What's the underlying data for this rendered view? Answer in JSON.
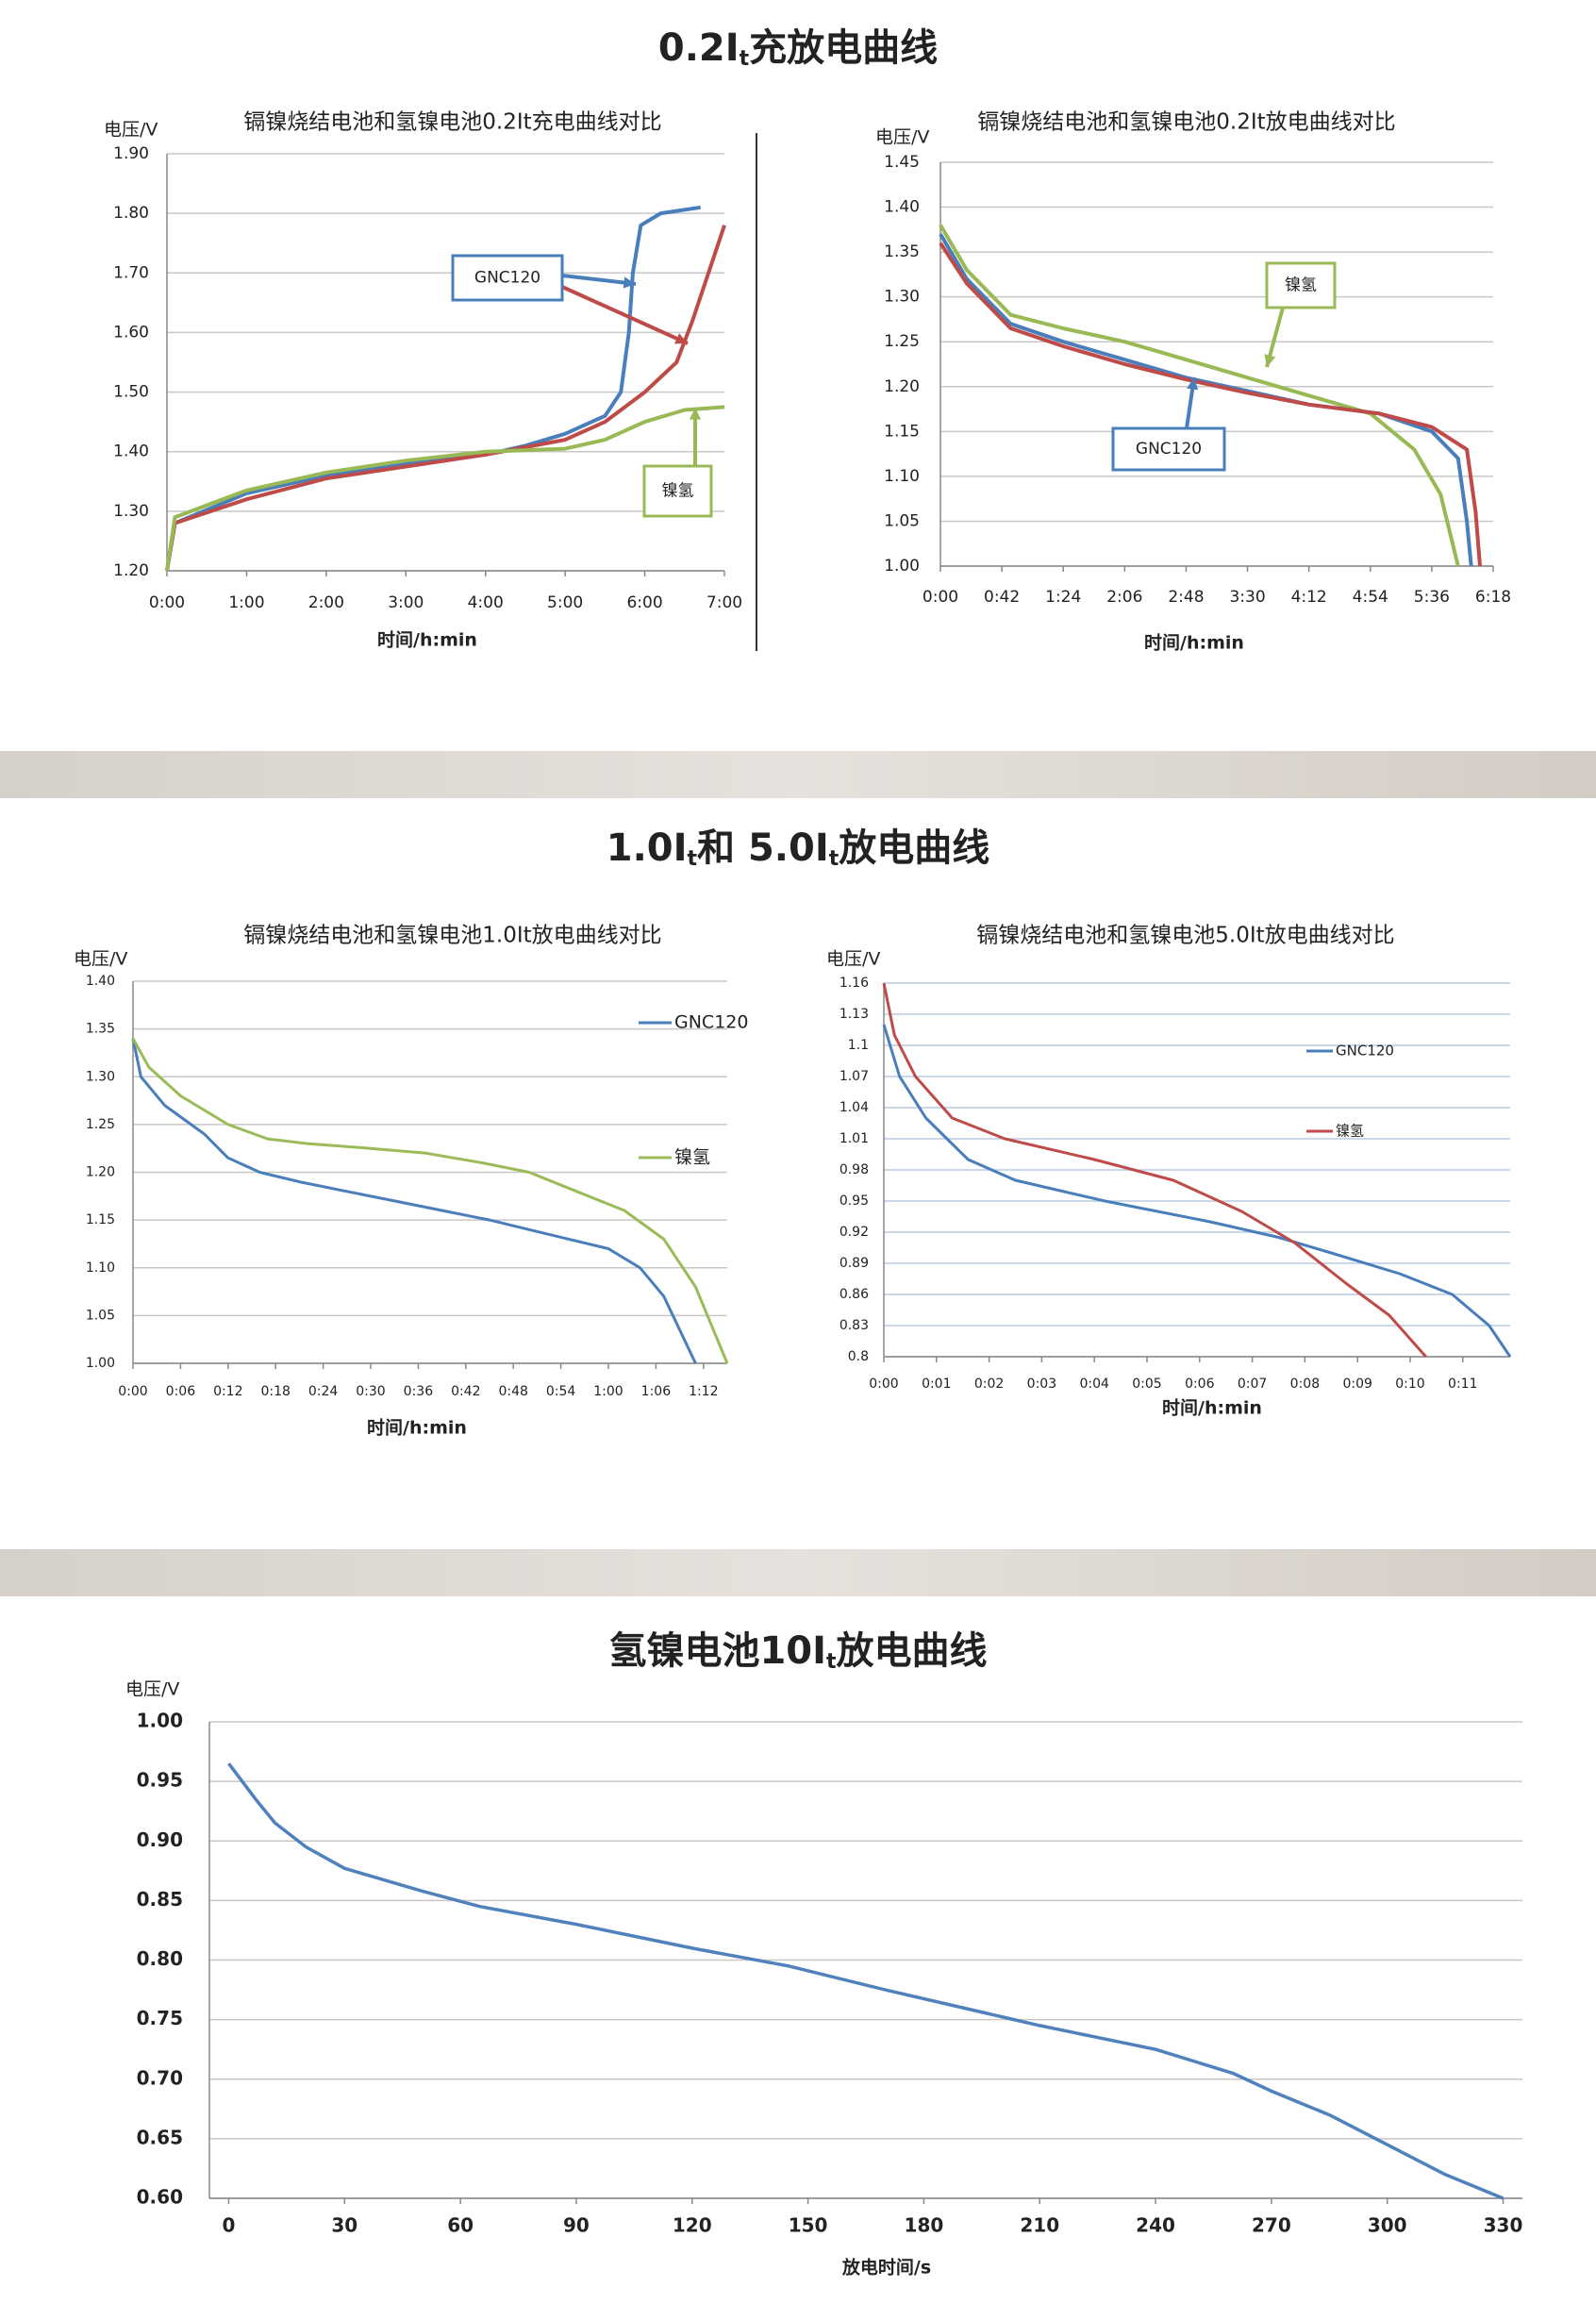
{
  "sections": [
    {
      "heading": [
        "0.2I",
        "t",
        "充放电曲线"
      ]
    },
    {
      "heading": [
        "1.0I",
        "t",
        "和 5.0I",
        "t",
        "放电曲线"
      ]
    },
    {
      "heading": [
        "氢镍电池10I",
        "t",
        "放电曲线"
      ]
    }
  ],
  "chart_data": [
    {
      "type": "line",
      "title": "镉镍烧结电池和氢镍电池0.2It充电曲线对比",
      "y_label": "电压/V",
      "x_label": "时间/h:min",
      "grid": true,
      "xlim": [
        0,
        7
      ],
      "xticks": [
        {
          "value": 0,
          "label": "0:00"
        },
        {
          "value": 1,
          "label": "1:00"
        },
        {
          "value": 2,
          "label": "2:00"
        },
        {
          "value": 3,
          "label": "3:00"
        },
        {
          "value": 4,
          "label": "4:00"
        },
        {
          "value": 5,
          "label": "5:00"
        },
        {
          "value": 6,
          "label": "6:00"
        },
        {
          "value": 7,
          "label": "7:00"
        }
      ],
      "ylim": [
        1.2,
        1.9
      ],
      "yticks": [
        {
          "value": 1.2,
          "label": "1.20"
        },
        {
          "value": 1.3,
          "label": "1.30"
        },
        {
          "value": 1.4,
          "label": "1.40"
        },
        {
          "value": 1.5,
          "label": "1.50"
        },
        {
          "value": 1.6,
          "label": "1.60"
        },
        {
          "value": 1.7,
          "label": "1.70"
        },
        {
          "value": 1.8,
          "label": "1.80"
        },
        {
          "value": 1.9,
          "label": "1.90"
        }
      ],
      "annotations": [
        "GNC120",
        "镍氢"
      ],
      "series": [
        {
          "color": "#4a7ebb",
          "x": [
            0,
            0.1,
            1,
            2,
            3,
            4,
            4.5,
            5,
            5.5,
            5.7,
            5.8,
            5.85,
            5.95,
            6.2,
            6.7
          ],
          "values": [
            1.2,
            1.28,
            1.33,
            1.36,
            1.38,
            1.395,
            1.41,
            1.43,
            1.46,
            1.5,
            1.6,
            1.7,
            1.78,
            1.8,
            1.81
          ]
        },
        {
          "color": "#be4b48",
          "x": [
            0,
            0.1,
            1,
            2,
            3,
            4,
            5,
            5.5,
            6,
            6.4,
            6.6,
            6.8,
            7
          ],
          "values": [
            1.2,
            1.28,
            1.32,
            1.355,
            1.375,
            1.395,
            1.42,
            1.45,
            1.5,
            1.55,
            1.62,
            1.7,
            1.78
          ]
        },
        {
          "color": "#98b954",
          "x": [
            0,
            0.1,
            1,
            2,
            3,
            4,
            5,
            5.5,
            6,
            6.5,
            7
          ],
          "values": [
            1.2,
            1.29,
            1.335,
            1.365,
            1.385,
            1.4,
            1.405,
            1.42,
            1.45,
            1.47,
            1.475
          ]
        }
      ]
    },
    {
      "type": "line",
      "title": "镉镍烧结电池和氢镍电池0.2It放电曲线对比",
      "y_label": "电压/V",
      "x_label": "时间/h:min",
      "grid": true,
      "xlim": [
        0,
        6.3
      ],
      "xticks": [
        {
          "value": 0,
          "label": "0:00"
        },
        {
          "value": 0.7,
          "label": "0:42"
        },
        {
          "value": 1.4,
          "label": "1:24"
        },
        {
          "value": 2.1,
          "label": "2:06"
        },
        {
          "value": 2.8,
          "label": "2:48"
        },
        {
          "value": 3.5,
          "label": "3:30"
        },
        {
          "value": 4.2,
          "label": "4:12"
        },
        {
          "value": 4.9,
          "label": "4:54"
        },
        {
          "value": 5.6,
          "label": "5:36"
        },
        {
          "value": 6.3,
          "label": "6:18"
        }
      ],
      "ylim": [
        1.0,
        1.45
      ],
      "yticks": [
        {
          "value": 1.0,
          "label": "1.00"
        },
        {
          "value": 1.05,
          "label": "1.05"
        },
        {
          "value": 1.1,
          "label": "1.10"
        },
        {
          "value": 1.15,
          "label": "1.15"
        },
        {
          "value": 1.2,
          "label": "1.20"
        },
        {
          "value": 1.25,
          "label": "1.25"
        },
        {
          "value": 1.3,
          "label": "1.30"
        },
        {
          "value": 1.35,
          "label": "1.35"
        },
        {
          "value": 1.4,
          "label": "1.40"
        },
        {
          "value": 1.45,
          "label": "1.45"
        }
      ],
      "annotations": [
        "镍氢",
        "GNC120"
      ],
      "series": [
        {
          "color": "#98b954",
          "x": [
            0,
            0.3,
            0.8,
            1.4,
            2.1,
            2.8,
            3.5,
            4.2,
            4.9,
            5.4,
            5.7,
            5.9
          ],
          "values": [
            1.38,
            1.33,
            1.28,
            1.265,
            1.25,
            1.23,
            1.21,
            1.19,
            1.17,
            1.13,
            1.08,
            1.0
          ]
        },
        {
          "color": "#4a7ebb",
          "x": [
            0,
            0.3,
            0.8,
            1.4,
            2.1,
            2.8,
            3.5,
            4.2,
            5,
            5.6,
            5.9,
            6.0,
            6.05
          ],
          "values": [
            1.37,
            1.32,
            1.27,
            1.25,
            1.23,
            1.21,
            1.195,
            1.18,
            1.17,
            1.15,
            1.12,
            1.05,
            1.0
          ]
        },
        {
          "color": "#be4b48",
          "x": [
            0,
            0.3,
            0.8,
            1.4,
            2.1,
            2.8,
            3.5,
            4.2,
            5,
            5.6,
            6.0,
            6.1,
            6.15
          ],
          "values": [
            1.36,
            1.315,
            1.265,
            1.245,
            1.225,
            1.208,
            1.193,
            1.18,
            1.17,
            1.155,
            1.13,
            1.06,
            1.0
          ]
        }
      ]
    },
    {
      "type": "line",
      "title": "镉镍烧结电池和氢镍电池1.0It放电曲线对比",
      "y_label": "电压/V",
      "x_label": "时间/h:min",
      "grid": true,
      "xlim": [
        0,
        75
      ],
      "xticks": [
        {
          "value": 0,
          "label": "0:00"
        },
        {
          "value": 6,
          "label": "0:06"
        },
        {
          "value": 12,
          "label": "0:12"
        },
        {
          "value": 18,
          "label": "0:18"
        },
        {
          "value": 24,
          "label": "0:24"
        },
        {
          "value": 30,
          "label": "0:30"
        },
        {
          "value": 36,
          "label": "0:36"
        },
        {
          "value": 42,
          "label": "0:42"
        },
        {
          "value": 48,
          "label": "0:48"
        },
        {
          "value": 54,
          "label": "0:54"
        },
        {
          "value": 60,
          "label": "1:00"
        },
        {
          "value": 66,
          "label": "1:06"
        },
        {
          "value": 72,
          "label": "1:12"
        }
      ],
      "ylim": [
        1.0,
        1.4
      ],
      "yticks": [
        {
          "value": 1.0,
          "label": "1.00"
        },
        {
          "value": 1.05,
          "label": "1.05"
        },
        {
          "value": 1.1,
          "label": "1.10"
        },
        {
          "value": 1.15,
          "label": "1.15"
        },
        {
          "value": 1.2,
          "label": "1.20"
        },
        {
          "value": 1.25,
          "label": "1.25"
        },
        {
          "value": 1.3,
          "label": "1.30"
        },
        {
          "value": 1.35,
          "label": "1.35"
        },
        {
          "value": 1.4,
          "label": "1.40"
        }
      ],
      "series": [
        {
          "name": "GNC120",
          "color": "#4a7ebb",
          "x": [
            0,
            1,
            4,
            9,
            12,
            16,
            21,
            27,
            33,
            39,
            45,
            50,
            55,
            60,
            64,
            67,
            71
          ],
          "values": [
            1.34,
            1.3,
            1.27,
            1.24,
            1.215,
            1.2,
            1.19,
            1.18,
            1.17,
            1.16,
            1.15,
            1.14,
            1.13,
            1.12,
            1.1,
            1.07,
            1.0
          ]
        },
        {
          "name": "镍氢",
          "color": "#9bbb59",
          "x": [
            0,
            2,
            6,
            12,
            17,
            22,
            30,
            37,
            44,
            50,
            56,
            62,
            67,
            71,
            75
          ],
          "values": [
            1.34,
            1.31,
            1.28,
            1.25,
            1.235,
            1.23,
            1.225,
            1.22,
            1.21,
            1.2,
            1.18,
            1.16,
            1.13,
            1.08,
            1.0
          ]
        }
      ]
    },
    {
      "type": "line",
      "title": "镉镍烧结电池和氢镍电池5.0It放电曲线对比",
      "y_label": "电压/V",
      "x_label": "时间/h:min",
      "grid": true,
      "xlim": [
        0,
        11.9
      ],
      "xticks": [
        {
          "value": 0,
          "label": "0:00"
        },
        {
          "value": 1,
          "label": "0:01"
        },
        {
          "value": 2,
          "label": "0:02"
        },
        {
          "value": 3,
          "label": "0:03"
        },
        {
          "value": 4,
          "label": "0:04"
        },
        {
          "value": 5,
          "label": "0:05"
        },
        {
          "value": 6,
          "label": "0:06"
        },
        {
          "value": 7,
          "label": "0:07"
        },
        {
          "value": 8,
          "label": "0:08"
        },
        {
          "value": 9,
          "label": "0:09"
        },
        {
          "value": 10,
          "label": "0:10"
        },
        {
          "value": 11,
          "label": "0:11"
        }
      ],
      "ylim": [
        0.8,
        1.16
      ],
      "yticks": [
        0.8,
        0.83,
        0.86,
        0.89,
        0.92,
        0.95,
        0.98,
        1.01,
        1.04,
        1.07,
        1.1,
        1.13,
        1.16
      ],
      "series": [
        {
          "name": "GNC120",
          "color": "#4a7ebb",
          "x": [
            0,
            0.3,
            0.8,
            1.6,
            2.5,
            4.2,
            6.2,
            7.5,
            8.5,
            9.8,
            10.8,
            11.5,
            11.9
          ],
          "values": [
            1.12,
            1.07,
            1.03,
            0.99,
            0.97,
            0.95,
            0.93,
            0.915,
            0.9,
            0.88,
            0.86,
            0.83,
            0.8
          ]
        },
        {
          "name": "镍氢",
          "color": "#be4b48",
          "x": [
            0,
            0.2,
            0.6,
            1.3,
            2.3,
            4,
            5.5,
            6.8,
            7.8,
            8.8,
            9.6,
            10.3
          ],
          "values": [
            1.16,
            1.11,
            1.07,
            1.03,
            1.01,
            0.99,
            0.97,
            0.94,
            0.91,
            0.87,
            0.84,
            0.8
          ]
        }
      ]
    },
    {
      "type": "line",
      "y_label": "电压/V",
      "x_label": "放电时间/s",
      "grid": true,
      "xlim": [
        -5,
        335
      ],
      "xticks": [
        0,
        30,
        60,
        90,
        120,
        150,
        180,
        210,
        240,
        270,
        300,
        330
      ],
      "ylim": [
        0.6,
        1.0
      ],
      "yticks": [
        {
          "value": 0.6,
          "label": "0.60"
        },
        {
          "value": 0.65,
          "label": "0.65"
        },
        {
          "value": 0.7,
          "label": "0.70"
        },
        {
          "value": 0.75,
          "label": "0.75"
        },
        {
          "value": 0.8,
          "label": "0.80"
        },
        {
          "value": 0.85,
          "label": "0.85"
        },
        {
          "value": 0.9,
          "label": "0.90"
        },
        {
          "value": 0.95,
          "label": "0.95"
        },
        {
          "value": 1.0,
          "label": "1.00"
        }
      ],
      "series": [
        {
          "color": "#4f81bd",
          "x": [
            0,
            7,
            12,
            20,
            30,
            50,
            65,
            90,
            120,
            145,
            170,
            190,
            210,
            240,
            260,
            270,
            285,
            300,
            315,
            330
          ],
          "values": [
            0.965,
            0.935,
            0.915,
            0.895,
            0.877,
            0.858,
            0.845,
            0.83,
            0.81,
            0.795,
            0.775,
            0.76,
            0.745,
            0.725,
            0.705,
            0.69,
            0.67,
            0.645,
            0.62,
            0.6
          ]
        }
      ]
    }
  ]
}
